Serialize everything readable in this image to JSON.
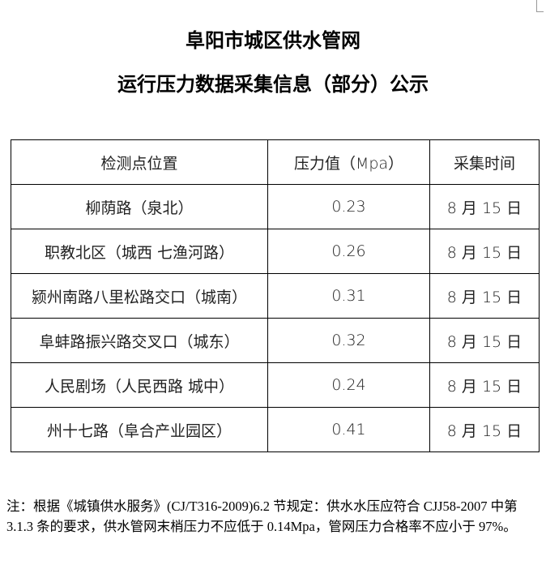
{
  "title": {
    "line1": "阜阳市城区供水管网",
    "line2": "运行压力数据采集信息（部分）公示"
  },
  "table": {
    "headers": [
      "检测点位置",
      "压力值（Mpa）",
      "采集时间"
    ],
    "rows": [
      [
        "柳荫路（泉北）",
        "0.23",
        "8 月 15 日"
      ],
      [
        "职教北区（城西 七渔河路）",
        "0.26",
        "8 月 15 日"
      ],
      [
        "颍州南路八里松路交口（城南）",
        "0.31",
        "8 月 15 日"
      ],
      [
        "阜蚌路振兴路交叉口（城东）",
        "0.32",
        "8 月 15 日"
      ],
      [
        "人民剧场（人民西路 城中）",
        "0.24",
        "8 月 15 日"
      ],
      [
        "州十七路（阜合产业园区）",
        "0.41",
        "8 月 15 日"
      ]
    ]
  },
  "note": "注：根据《城镇供水服务》(CJ/T316-2009)6.2 节规定：供水水压应符合 CJJ58-2007 中第 3.1.3 条的要求，供水管网末梢压力不应低于 0.14Mpa，管网压力合格率不应小于 97%。"
}
